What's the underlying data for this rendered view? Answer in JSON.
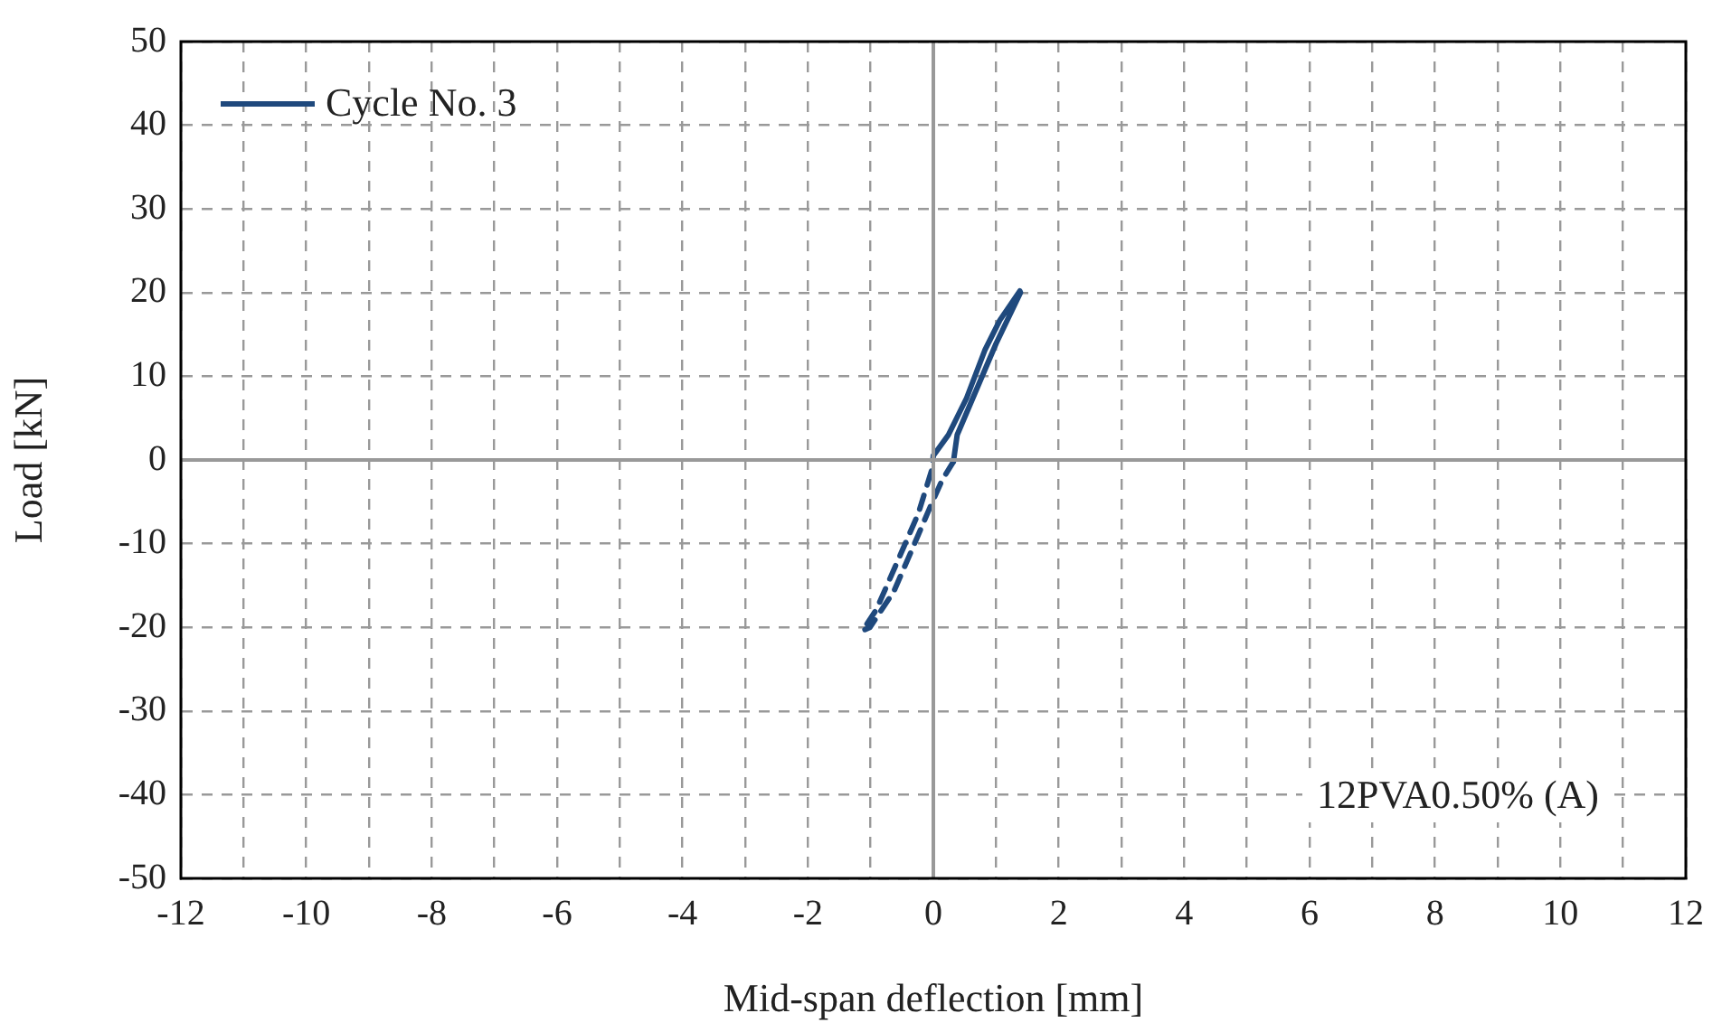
{
  "chart_data": {
    "type": "line",
    "xlabel": "Mid-span deflection [mm]",
    "ylabel": "Load [kN]",
    "annotations": [
      "12PVA0.50% (A)"
    ],
    "xlim": [
      -12,
      12
    ],
    "xticks": [
      -12,
      {
        "value": -11,
        "label": null
      },
      -10,
      {
        "value": -9,
        "label": null
      },
      -8,
      {
        "value": -7,
        "label": null
      },
      -6,
      {
        "value": -5,
        "label": null
      },
      -4,
      {
        "value": -3,
        "label": null
      },
      -2,
      {
        "value": -1,
        "label": null
      },
      0,
      {
        "value": 1,
        "label": null
      },
      2,
      {
        "value": 3,
        "label": null
      },
      4,
      {
        "value": 5,
        "label": null
      },
      6,
      {
        "value": 7,
        "label": null
      },
      8,
      {
        "value": 9,
        "label": null
      },
      10,
      {
        "value": 11,
        "label": null
      },
      12
    ],
    "ylim": [
      -50,
      50
    ],
    "yticks": [
      -50,
      -40,
      -30,
      -20,
      -10,
      0,
      10,
      20,
      30,
      40,
      50
    ],
    "grid": true,
    "legend": "top left",
    "marker": "none",
    "series": [
      {
        "name": "Cycle No. 3",
        "color": "#1f497d",
        "line_style": "solid",
        "x": [
          0,
          0.24,
          0.53,
          0.82,
          1.06,
          1.38,
          1.39,
          1.0,
          0.63,
          0.38,
          0.32
        ],
        "values": [
          0.5,
          3,
          7.4,
          13.1,
          16.7,
          20.2,
          20,
          13.9,
          7.4,
          3,
          -0.2
        ]
      },
      {
        "color": "#1f497d",
        "line_style": "dashed",
        "x": [
          0.32,
          0.14,
          -0.05,
          -0.34,
          -0.63,
          -1.01,
          -1.13,
          -0.91,
          -0.53,
          -0.24,
          -0.03,
          0
        ],
        "values": [
          -0.2,
          -2.4,
          -5.6,
          -10.7,
          -15.7,
          -20,
          -20.4,
          -17.9,
          -11.4,
          -6.4,
          -1.3,
          0.5
        ]
      }
    ]
  }
}
